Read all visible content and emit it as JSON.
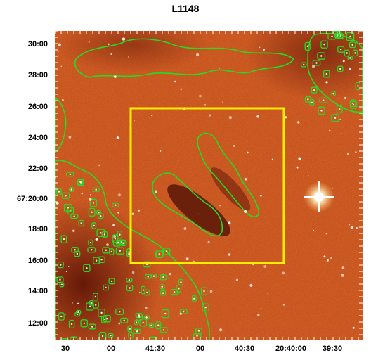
{
  "title": "L1148",
  "y_ticks": [
    {
      "label": "30:00"
    },
    {
      "label": "28:00"
    },
    {
      "label": "26:00"
    },
    {
      "label": "24:00"
    },
    {
      "label": "22:00"
    },
    {
      "label": "67:20:00"
    },
    {
      "label": "18:00"
    },
    {
      "label": "16:00"
    },
    {
      "label": "14:00"
    },
    {
      "label": "12:00"
    }
  ],
  "x_ticks": [
    {
      "label": "30"
    },
    {
      "label": "00"
    },
    {
      "label": "41:30"
    },
    {
      "label": "00"
    },
    {
      "label": "40:30"
    },
    {
      "label": "20:40:00"
    },
    {
      "label": "39:30"
    }
  ],
  "colors": {
    "background": "#c8541f",
    "dark": "#6b1a0a",
    "contour": "#22dd22",
    "box": "#ffee00",
    "star": "#ffffff"
  }
}
